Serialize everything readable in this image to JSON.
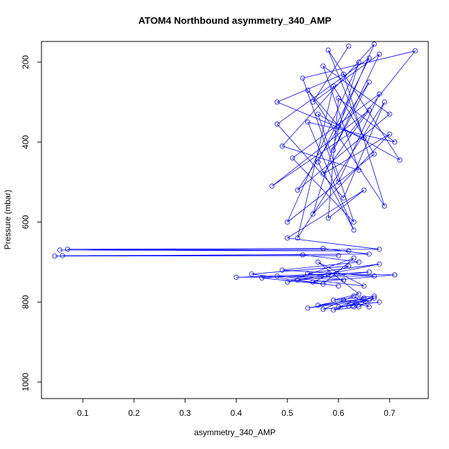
{
  "chart_data": {
    "type": "line",
    "title": "ATOM4 Northbound asymmetry_340_AMP",
    "x_label": "asymmetry_340_AMP",
    "y_label": "Pressure (mbar)",
    "xlim": [
      0.0189,
      0.7757
    ],
    "ylim": [
      1041.4,
      148.3
    ],
    "xticks": [
      0.1,
      0.2,
      0.3,
      0.4,
      0.5,
      0.6,
      0.7
    ],
    "yticks": [
      200,
      400,
      600,
      800,
      1000
    ],
    "grid": false,
    "series": [
      {
        "color": "#0000ff",
        "x": [
          0.62,
          0.55,
          0.68,
          0.59,
          0.66,
          0.52,
          0.7,
          0.57,
          0.64,
          0.49,
          0.67,
          0.6,
          0.54,
          0.69,
          0.61,
          0.48,
          0.65,
          0.58,
          0.72,
          0.56,
          0.63,
          0.51,
          0.68,
          0.6,
          0.53,
          0.75,
          0.62,
          0.47,
          0.66,
          0.57,
          0.7,
          0.55,
          0.64,
          0.5,
          0.67,
          0.59,
          0.52,
          0.69,
          0.61,
          0.48,
          0.66,
          0.56,
          0.63,
          0.54,
          0.71,
          0.6,
          0.58,
          0.65,
          0.5,
          0.68,
          0.055,
          0.62,
          0.07,
          0.57,
          0.66,
          0.045,
          0.6,
          0.06,
          0.53,
          0.64,
          0.49,
          0.67,
          0.4,
          0.58,
          0.71,
          0.55,
          0.62,
          0.43,
          0.6,
          0.52,
          0.66,
          0.45,
          0.57,
          0.63,
          0.5,
          0.68,
          0.54,
          0.61,
          0.48,
          0.65,
          0.56,
          0.64,
          0.59,
          0.67,
          0.62,
          0.66,
          0.54,
          0.65,
          0.6,
          0.68,
          0.57,
          0.63,
          0.66,
          0.61,
          0.56,
          0.67,
          0.64,
          0.59,
          0.65,
          0.63
        ],
        "values": [
          160,
          300,
          180,
          420,
          250,
          520,
          330,
          210,
          470,
          410,
          155,
          360,
          270,
          560,
          230,
          300,
          390,
          170,
          445,
          330,
          600,
          440,
          280,
          500,
          240,
          172,
          380,
          510,
          320,
          480,
          380,
          580,
          200,
          600,
          430,
          260,
          640,
          300,
          540,
          355,
          190,
          450,
          620,
          350,
          400,
          290,
          590,
          520,
          640,
          668,
          670,
          672,
          668,
          666,
          680,
          685,
          684,
          684,
          682,
          700,
          720,
          735,
          738,
          730,
          732,
          750,
          710,
          730,
          760,
          745,
          725,
          740,
          755,
          690,
          750,
          705,
          728,
          745,
          735,
          760,
          700,
          780,
          795,
          785,
          810,
          795,
          815,
          790,
          812,
          800,
          818,
          785,
          812,
          795,
          808,
          790,
          812,
          820,
          795,
          812
        ]
      }
    ]
  }
}
